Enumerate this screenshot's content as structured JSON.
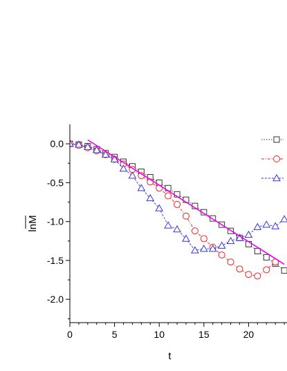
{
  "chart_data": {
    "type": "scatter",
    "title": "",
    "xlabel": "t",
    "ylabel": "lnM",
    "xlim": [
      0,
      24
    ],
    "ylim": [
      -2.3,
      0.25
    ],
    "x_ticks": [
      0,
      5,
      10,
      15,
      20
    ],
    "x_tick_labels": [
      "0",
      "5",
      "10",
      "15",
      "20"
    ],
    "y_ticks": [
      0.0,
      -0.5,
      -1.0,
      -1.5,
      -2.0
    ],
    "y_tick_labels": [
      "0.0",
      "-0.5",
      "-1.0",
      "-1.5",
      "-2.0"
    ],
    "grid": false,
    "legend_position": "top-right",
    "series": [
      {
        "marker": "square",
        "color": "#333333",
        "line_style": "dotted",
        "x": [
          0,
          1,
          2,
          3,
          4,
          5,
          6,
          7,
          8,
          9,
          10,
          11,
          12,
          13,
          14,
          15,
          16,
          17,
          18,
          19,
          20,
          21,
          22,
          23,
          24
        ],
        "y": [
          0,
          -0.01,
          -0.03,
          -0.07,
          -0.12,
          -0.17,
          -0.23,
          -0.29,
          -0.36,
          -0.43,
          -0.5,
          -0.57,
          -0.65,
          -0.72,
          -0.8,
          -0.88,
          -0.96,
          -1.04,
          -1.12,
          -1.21,
          -1.29,
          -1.38,
          -1.46,
          -1.54,
          -1.63
        ]
      },
      {
        "marker": "circle",
        "color": "#ee2222",
        "line_style": "dashdot",
        "x": [
          0,
          1,
          2,
          3,
          4,
          5,
          6,
          7,
          8,
          9,
          10,
          11,
          12,
          13,
          14,
          15,
          16,
          17,
          18,
          19,
          20,
          21,
          22,
          23
        ],
        "y": [
          0,
          -0.02,
          -0.05,
          -0.09,
          -0.14,
          -0.2,
          -0.26,
          -0.33,
          -0.41,
          -0.49,
          -0.57,
          -0.67,
          -0.78,
          -0.93,
          -1.12,
          -1.22,
          -1.33,
          -1.43,
          -1.52,
          -1.61,
          -1.68,
          -1.7,
          -1.62,
          -1.52
        ]
      },
      {
        "marker": "triangle",
        "color": "#3333dd",
        "line_style": "dashed",
        "x": [
          0,
          1,
          2,
          3,
          4,
          5,
          6,
          7,
          8,
          9,
          10,
          11,
          12,
          13,
          14,
          15,
          16,
          17,
          18,
          19,
          20,
          21,
          22,
          23,
          24
        ],
        "y": [
          0,
          -0.01,
          -0.04,
          -0.08,
          -0.14,
          -0.2,
          -0.32,
          -0.41,
          -0.57,
          -0.7,
          -0.83,
          -1.05,
          -1.1,
          -1.22,
          -1.37,
          -1.35,
          -1.35,
          -1.31,
          -1.25,
          -1.21,
          -1.17,
          -1.07,
          -1.04,
          -1.06,
          -0.97
        ]
      },
      {
        "type": "line",
        "marker": "none",
        "color": "#ee00ee",
        "x": [
          2,
          24
        ],
        "y": [
          0.05,
          -1.55
        ]
      }
    ]
  }
}
